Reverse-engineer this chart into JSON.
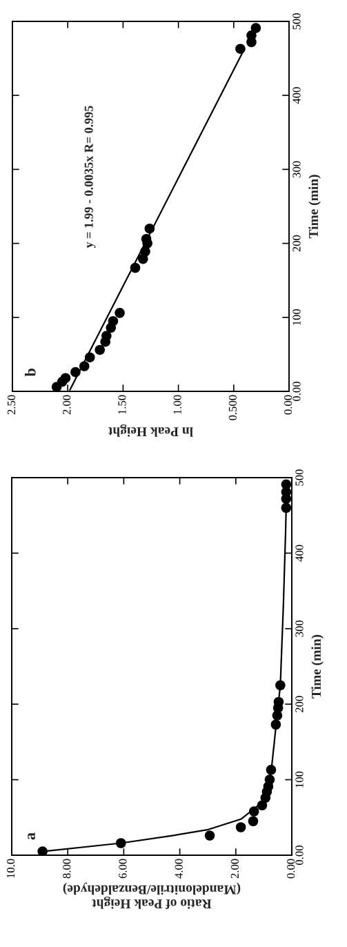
{
  "chart_data": [
    {
      "type": "scatter",
      "xlabel": "ln Peak Height",
      "ylabel": "Time (min)",
      "annotations": [
        "b",
        "y = 1.99 - 0.0035x R= 0.995"
      ],
      "xlim": [
        2.5,
        0
      ],
      "xticks": [
        {
          "value": 0,
          "label": "0.00"
        },
        {
          "value": 0.5,
          "label": "0.500"
        },
        {
          "value": 1,
          "label": "1.00"
        },
        {
          "value": 1.5,
          "label": "1.50"
        },
        {
          "value": 2,
          "label": "2.00"
        },
        {
          "value": 2.5,
          "label": "2.50"
        }
      ],
      "ylim": [
        0,
        500
      ],
      "yticks": [
        {
          "value": 0,
          "label": "0.00"
        },
        100,
        200,
        300,
        400,
        500
      ],
      "grid": false,
      "series": [
        {
          "marker": "circle",
          "color": "#000000",
          "x": [
            2.1,
            2.05,
            2.02,
            1.93,
            1.85,
            1.8,
            1.71,
            1.66,
            1.65,
            1.61,
            1.59,
            1.53,
            1.39,
            1.32,
            1.3,
            1.28,
            1.29,
            1.26,
            0.44,
            0.34,
            0.34,
            0.3
          ],
          "values": [
            6,
            13,
            18,
            26,
            34,
            46,
            56,
            67,
            75,
            86,
            95,
            106,
            167,
            179,
            189,
            200,
            206,
            220,
            463,
            472,
            481,
            491
          ]
        },
        {
          "type": "line",
          "marker": "none",
          "color": "#000000",
          "x": [
            1.98,
            0.42
          ],
          "values": [
            2,
            458
          ]
        }
      ]
    },
    {
      "type": "scatter",
      "xlabel": "Ratio of Peak Height\n(Mandelonitrile/Benzaldehyde)",
      "ylabel": "Time (min)",
      "annotations": [
        "a"
      ],
      "xlim": [
        10,
        0
      ],
      "xticks": [
        {
          "value": 0,
          "label": "0.00"
        },
        {
          "value": 2,
          "label": "2.00"
        },
        {
          "value": 4,
          "label": "4.00"
        },
        {
          "value": 6,
          "label": "6.00"
        },
        {
          "value": 8,
          "label": "8.00"
        },
        {
          "value": 10,
          "label": "10.0"
        }
      ],
      "ylim": [
        0,
        500
      ],
      "yticks": [
        {
          "value": 0,
          "label": "0.00"
        },
        100,
        200,
        300,
        400,
        500
      ],
      "grid": false,
      "series": [
        {
          "marker": "circle",
          "color": "#000000",
          "x": [
            8.9,
            6.1,
            2.93,
            1.82,
            1.38,
            1.35,
            1.06,
            0.94,
            0.89,
            0.84,
            0.79,
            0.74,
            0.57,
            0.52,
            0.49,
            0.47,
            0.41,
            0.2,
            0.2,
            0.2,
            0.2
          ],
          "values": [
            5,
            16,
            26,
            37,
            45,
            58,
            66,
            76,
            84,
            91,
            100,
            113,
            173,
            185,
            195,
            203,
            225,
            460,
            472,
            481,
            491
          ]
        },
        {
          "type": "line",
          "marker": "none",
          "color": "#000000",
          "x": [
            8.9,
            6.1,
            4.26,
            2.98,
            1.8,
            1.06,
            0.73,
            0.57,
            0.41,
            0.3,
            0.22,
            0.18
          ],
          "values": [
            5,
            16,
            26,
            34,
            48,
            70,
            113,
            169,
            225,
            332,
            431,
            495
          ]
        }
      ]
    }
  ]
}
